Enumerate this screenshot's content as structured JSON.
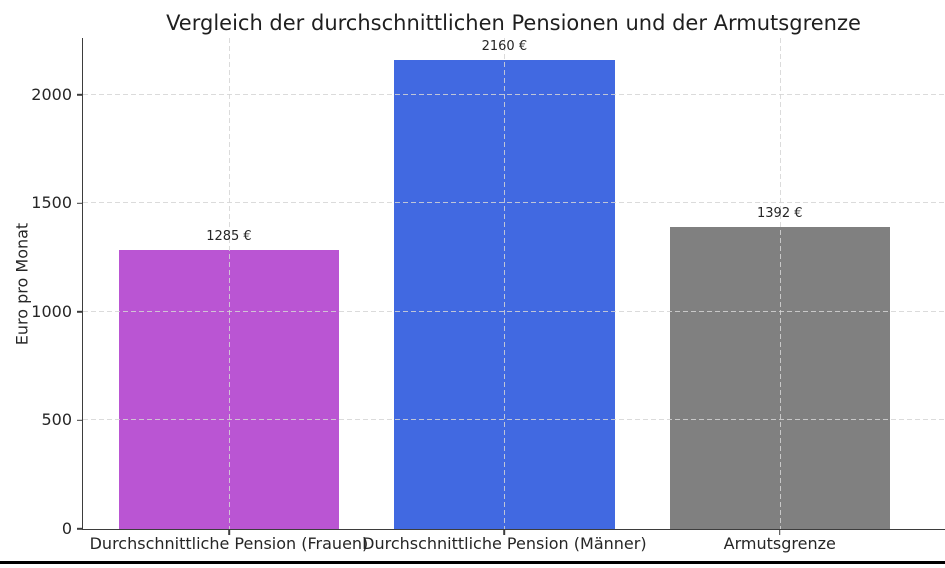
{
  "chart_data": {
    "type": "bar",
    "title": "Vergleich der durchschnittlichen Pensionen und der Armutsgrenze",
    "xlabel": "",
    "ylabel": "Euro pro Monat",
    "categories": [
      "Durchschnittliche Pension (Frauen)",
      "Durchschnittliche Pension (Männer)",
      "Armutsgrenze"
    ],
    "values": [
      1285,
      2160,
      1392
    ],
    "value_labels": [
      "1285 €",
      "2160 €",
      "1392 €"
    ],
    "bar_colors": [
      "#ba55d3",
      "#4169e1",
      "#808080"
    ],
    "yticks": [
      0,
      500,
      1000,
      1500,
      2000
    ],
    "ylim": [
      0,
      2260
    ],
    "xlim": [
      -0.53,
      2.6
    ],
    "bar_width": 0.8,
    "grid": "dashed gridlines on both axes, drawn over bars",
    "legend": "none"
  },
  "style": {
    "background": "#ffffff",
    "text_color": "#262626",
    "title_color": "#1f1f1f",
    "spine_color": "#3d3d3d",
    "grid_color": "#d5d5d5",
    "bottom_line_color": "#000000"
  }
}
